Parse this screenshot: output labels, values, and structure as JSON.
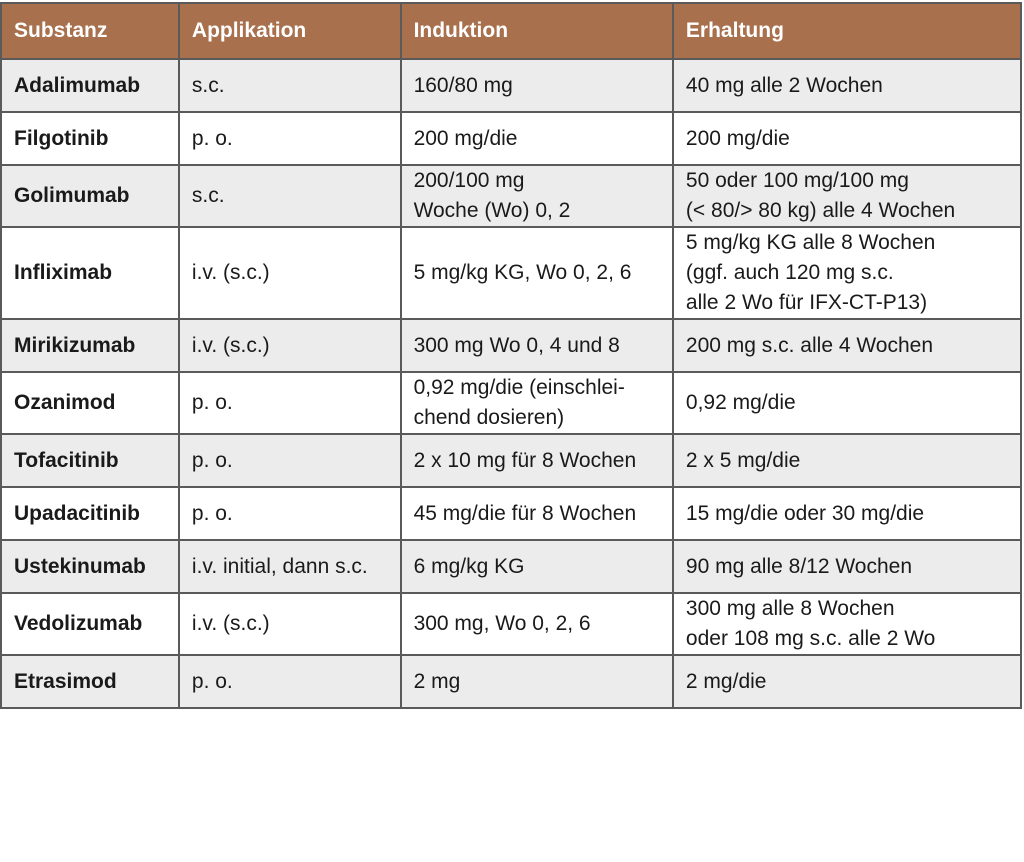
{
  "header": {
    "colors": {
      "header_bg": "#a8704c",
      "stripe": "#ececec"
    },
    "columns": [
      "Substanz",
      "Applikation",
      "Induktion",
      "Erhaltung"
    ]
  },
  "rows": [
    {
      "substanz": "Adalimumab",
      "applikation": "s.c.",
      "induktion": [
        "160/80 mg"
      ],
      "erhaltung": [
        "40 mg alle 2 Wochen"
      ]
    },
    {
      "substanz": "Filgotinib",
      "applikation": "p. o.",
      "induktion": [
        "200 mg/die"
      ],
      "erhaltung": [
        "200 mg/die"
      ]
    },
    {
      "substanz": "Golimumab",
      "applikation": "s.c.",
      "induktion": [
        "200/100 mg",
        "Woche (Wo) 0, 2"
      ],
      "erhaltung": [
        "50 oder 100 mg/100 mg",
        "(< 80/> 80 kg) alle 4 Wochen"
      ]
    },
    {
      "substanz": "Infliximab",
      "applikation": "i.v. (s.c.)",
      "induktion": [
        "5 mg/kg KG, Wo 0, 2, 6"
      ],
      "erhaltung": [
        "5 mg/kg KG alle 8 Wochen",
        "(ggf. auch 120 mg s.c.",
        "alle 2 Wo für IFX-CT-P13)"
      ]
    },
    {
      "substanz": "Mirikizumab",
      "applikation": "i.v. (s.c.)",
      "induktion": [
        "300 mg Wo 0, 4 und 8"
      ],
      "erhaltung": [
        "200 mg s.c. alle 4 Wochen"
      ]
    },
    {
      "substanz": "Ozanimod",
      "applikation": "p. o.",
      "induktion": [
        "0,92 mg/die (einschlei-",
        "chend dosieren)"
      ],
      "erhaltung": [
        "0,92 mg/die"
      ]
    },
    {
      "substanz": "Tofacitinib",
      "applikation": "p. o.",
      "induktion": [
        "2 x 10 mg für 8 Wochen"
      ],
      "erhaltung": [
        "2 x 5 mg/die"
      ]
    },
    {
      "substanz": "Upadacitinib",
      "applikation": "p. o.",
      "induktion": [
        "45 mg/die für 8 Wochen"
      ],
      "erhaltung": [
        "15 mg/die oder 30 mg/die"
      ]
    },
    {
      "substanz": "Ustekinumab",
      "applikation": "i.v. initial, dann s.c.",
      "induktion": [
        "6 mg/kg KG"
      ],
      "erhaltung": [
        "90 mg alle 8/12 Wochen"
      ]
    },
    {
      "substanz": "Vedolizumab",
      "applikation": "i.v. (s.c.)",
      "induktion": [
        "300 mg, Wo 0, 2, 6"
      ],
      "erhaltung": [
        "300 mg alle 8 Wochen",
        "oder 108 mg s.c. alle 2 Wo"
      ]
    },
    {
      "substanz": "Etrasimod",
      "applikation": "p. o.",
      "induktion": [
        "2 mg"
      ],
      "erhaltung": [
        "2 mg/die"
      ]
    }
  ]
}
